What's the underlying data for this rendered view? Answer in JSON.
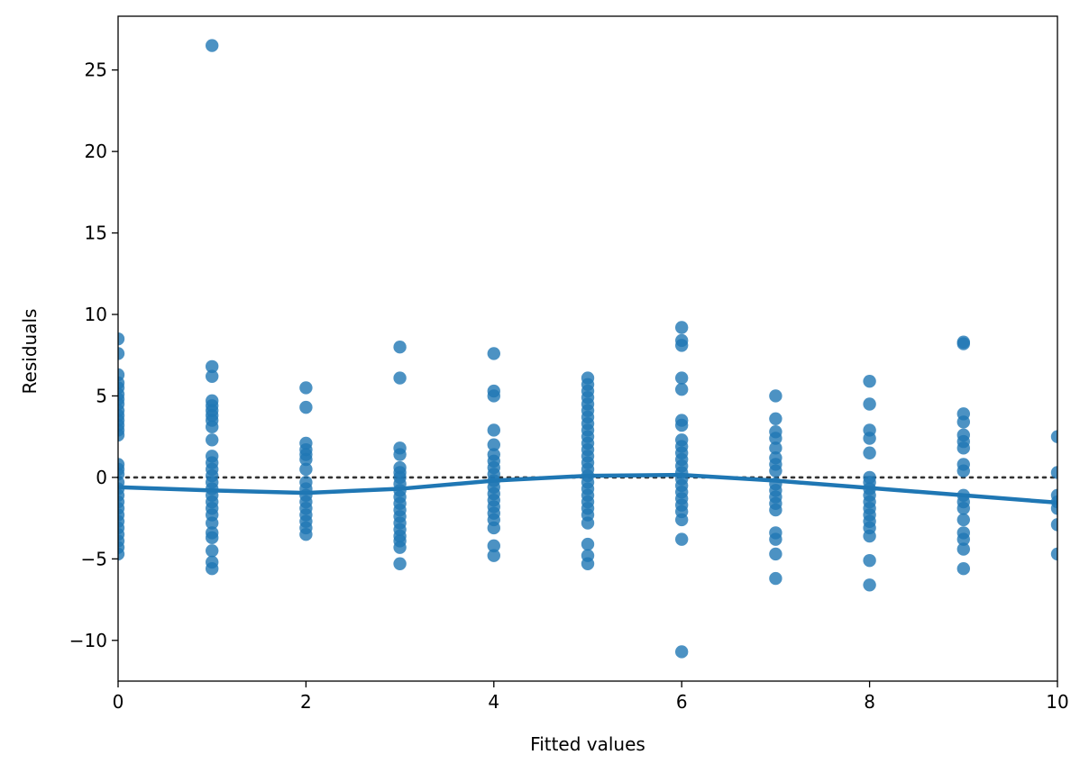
{
  "chart_data": {
    "type": "scatter",
    "xlabel": "Fitted values",
    "ylabel": "Residuals",
    "xlim": [
      0,
      10
    ],
    "ylim": [
      -12.5,
      28.3
    ],
    "xticks": [
      0,
      2,
      4,
      6,
      8,
      10
    ],
    "yticks": [
      -10,
      -5,
      0,
      5,
      10,
      15,
      20,
      25
    ],
    "ytick_labels": [
      "−10",
      "−5",
      "0",
      "5",
      "10",
      "15",
      "20",
      "25"
    ],
    "grid": false,
    "reference_line": {
      "y": 0,
      "style": "dotted",
      "color": "#333333"
    },
    "colors": {
      "points": "#1f77b4",
      "line": "#1f77b4"
    },
    "series": [
      {
        "kind": "points",
        "points": [
          [
            0,
            8.5
          ],
          [
            0,
            7.6
          ],
          [
            0,
            6.3
          ],
          [
            0,
            5.8
          ],
          [
            0,
            5.5
          ],
          [
            0,
            5.1
          ],
          [
            0,
            4.8
          ],
          [
            0,
            4.5
          ],
          [
            0,
            4.1
          ],
          [
            0,
            3.8
          ],
          [
            0,
            3.5
          ],
          [
            0,
            3.2
          ],
          [
            0,
            2.9
          ],
          [
            0,
            2.6
          ],
          [
            0,
            0.8
          ],
          [
            0,
            0.5
          ],
          [
            0,
            0.2
          ],
          [
            0,
            -0.3
          ],
          [
            0,
            -0.7
          ],
          [
            0,
            -1.1
          ],
          [
            0,
            -1.5
          ],
          [
            0,
            -1.9
          ],
          [
            0,
            -2.3
          ],
          [
            0,
            -2.7
          ],
          [
            0,
            -3.1
          ],
          [
            0,
            -3.5
          ],
          [
            0,
            -3.9
          ],
          [
            0,
            -4.3
          ],
          [
            0,
            -4.7
          ],
          [
            1,
            26.5
          ],
          [
            1,
            6.8
          ],
          [
            1,
            6.2
          ],
          [
            1,
            4.7
          ],
          [
            1,
            4.4
          ],
          [
            1,
            4.1
          ],
          [
            1,
            3.8
          ],
          [
            1,
            3.5
          ],
          [
            1,
            3.1
          ],
          [
            1,
            2.3
          ],
          [
            1,
            1.3
          ],
          [
            1,
            0.9
          ],
          [
            1,
            0.5
          ],
          [
            1,
            0.1
          ],
          [
            1,
            -0.3
          ],
          [
            1,
            -0.7
          ],
          [
            1,
            -1.1
          ],
          [
            1,
            -1.5
          ],
          [
            1,
            -1.9
          ],
          [
            1,
            -2.3
          ],
          [
            1,
            -2.8
          ],
          [
            1,
            -3.4
          ],
          [
            1,
            -3.7
          ],
          [
            1,
            -4.5
          ],
          [
            1,
            -5.2
          ],
          [
            1,
            -5.6
          ],
          [
            2,
            5.5
          ],
          [
            2,
            4.3
          ],
          [
            2,
            2.1
          ],
          [
            2,
            1.7
          ],
          [
            2,
            1.4
          ],
          [
            2,
            1.1
          ],
          [
            2,
            0.5
          ],
          [
            2,
            -0.3
          ],
          [
            2,
            -0.7
          ],
          [
            2,
            -1.1
          ],
          [
            2,
            -1.5
          ],
          [
            2,
            -1.9
          ],
          [
            2,
            -2.3
          ],
          [
            2,
            -2.7
          ],
          [
            2,
            -3.1
          ],
          [
            2,
            -3.5
          ],
          [
            3,
            8.0
          ],
          [
            3,
            6.1
          ],
          [
            3,
            1.8
          ],
          [
            3,
            1.4
          ],
          [
            3,
            0.6
          ],
          [
            3,
            0.3
          ],
          [
            3,
            0.0
          ],
          [
            3,
            -0.4
          ],
          [
            3,
            -0.8
          ],
          [
            3,
            -1.2
          ],
          [
            3,
            -1.6
          ],
          [
            3,
            -2.0
          ],
          [
            3,
            -2.4
          ],
          [
            3,
            -2.8
          ],
          [
            3,
            -3.2
          ],
          [
            3,
            -3.6
          ],
          [
            3,
            -3.9
          ],
          [
            3,
            -4.3
          ],
          [
            3,
            -5.3
          ],
          [
            4,
            7.6
          ],
          [
            4,
            5.3
          ],
          [
            4,
            5.0
          ],
          [
            4,
            2.9
          ],
          [
            4,
            2.0
          ],
          [
            4,
            1.4
          ],
          [
            4,
            1.0
          ],
          [
            4,
            0.6
          ],
          [
            4,
            0.2
          ],
          [
            4,
            -0.2
          ],
          [
            4,
            -0.6
          ],
          [
            4,
            -1.0
          ],
          [
            4,
            -1.4
          ],
          [
            4,
            -1.8
          ],
          [
            4,
            -2.2
          ],
          [
            4,
            -2.6
          ],
          [
            4,
            -3.1
          ],
          [
            4,
            -4.2
          ],
          [
            4,
            -4.8
          ],
          [
            5,
            6.1
          ],
          [
            5,
            5.7
          ],
          [
            5,
            5.3
          ],
          [
            5,
            4.9
          ],
          [
            5,
            4.5
          ],
          [
            5,
            4.1
          ],
          [
            5,
            3.7
          ],
          [
            5,
            3.3
          ],
          [
            5,
            2.9
          ],
          [
            5,
            2.5
          ],
          [
            5,
            2.1
          ],
          [
            5,
            1.7
          ],
          [
            5,
            1.3
          ],
          [
            5,
            0.9
          ],
          [
            5,
            0.5
          ],
          [
            5,
            0.1
          ],
          [
            5,
            -0.3
          ],
          [
            5,
            -0.7
          ],
          [
            5,
            -1.1
          ],
          [
            5,
            -1.5
          ],
          [
            5,
            -1.9
          ],
          [
            5,
            -2.3
          ],
          [
            5,
            -2.8
          ],
          [
            5,
            -4.1
          ],
          [
            5,
            -4.8
          ],
          [
            5,
            -5.3
          ],
          [
            6,
            9.2
          ],
          [
            6,
            8.4
          ],
          [
            6,
            8.1
          ],
          [
            6,
            6.1
          ],
          [
            6,
            5.4
          ],
          [
            6,
            3.5
          ],
          [
            6,
            3.2
          ],
          [
            6,
            2.3
          ],
          [
            6,
            1.9
          ],
          [
            6,
            1.5
          ],
          [
            6,
            1.1
          ],
          [
            6,
            0.7
          ],
          [
            6,
            0.3
          ],
          [
            6,
            -0.1
          ],
          [
            6,
            -0.5
          ],
          [
            6,
            -0.9
          ],
          [
            6,
            -1.3
          ],
          [
            6,
            -1.7
          ],
          [
            6,
            -2.1
          ],
          [
            6,
            -2.6
          ],
          [
            6,
            -3.8
          ],
          [
            6,
            -10.7
          ],
          [
            7,
            5.0
          ],
          [
            7,
            3.6
          ],
          [
            7,
            2.8
          ],
          [
            7,
            2.4
          ],
          [
            7,
            1.8
          ],
          [
            7,
            1.2
          ],
          [
            7,
            0.8
          ],
          [
            7,
            0.4
          ],
          [
            7,
            -0.4
          ],
          [
            7,
            -0.8
          ],
          [
            7,
            -1.2
          ],
          [
            7,
            -1.6
          ],
          [
            7,
            -2.0
          ],
          [
            7,
            -3.4
          ],
          [
            7,
            -3.8
          ],
          [
            7,
            -4.7
          ],
          [
            7,
            -6.2
          ],
          [
            8,
            5.9
          ],
          [
            8,
            4.5
          ],
          [
            8,
            2.9
          ],
          [
            8,
            2.4
          ],
          [
            8,
            1.5
          ],
          [
            8,
            0.0
          ],
          [
            8,
            -0.3
          ],
          [
            8,
            -0.7
          ],
          [
            8,
            -1.1
          ],
          [
            8,
            -1.5
          ],
          [
            8,
            -1.9
          ],
          [
            8,
            -2.3
          ],
          [
            8,
            -2.7
          ],
          [
            8,
            -3.1
          ],
          [
            8,
            -3.6
          ],
          [
            8,
            -5.1
          ],
          [
            8,
            -6.6
          ],
          [
            9,
            8.3
          ],
          [
            9,
            8.2
          ],
          [
            9,
            3.9
          ],
          [
            9,
            3.4
          ],
          [
            9,
            2.6
          ],
          [
            9,
            2.2
          ],
          [
            9,
            1.8
          ],
          [
            9,
            0.8
          ],
          [
            9,
            0.4
          ],
          [
            9,
            -1.1
          ],
          [
            9,
            -1.5
          ],
          [
            9,
            -1.9
          ],
          [
            9,
            -2.6
          ],
          [
            9,
            -3.4
          ],
          [
            9,
            -3.8
          ],
          [
            9,
            -4.4
          ],
          [
            9,
            -5.6
          ],
          [
            10,
            2.5
          ],
          [
            10,
            0.3
          ],
          [
            10,
            -1.1
          ],
          [
            10,
            -1.5
          ],
          [
            10,
            -1.9
          ],
          [
            10,
            -2.9
          ],
          [
            10,
            -4.7
          ]
        ]
      },
      {
        "kind": "lowess",
        "x": [
          0,
          1,
          2,
          3,
          4,
          5,
          6,
          7,
          8,
          9,
          10
        ],
        "y": [
          -0.6,
          -0.8,
          -0.95,
          -0.7,
          -0.2,
          0.1,
          0.15,
          -0.2,
          -0.65,
          -1.1,
          -1.55
        ]
      }
    ]
  }
}
